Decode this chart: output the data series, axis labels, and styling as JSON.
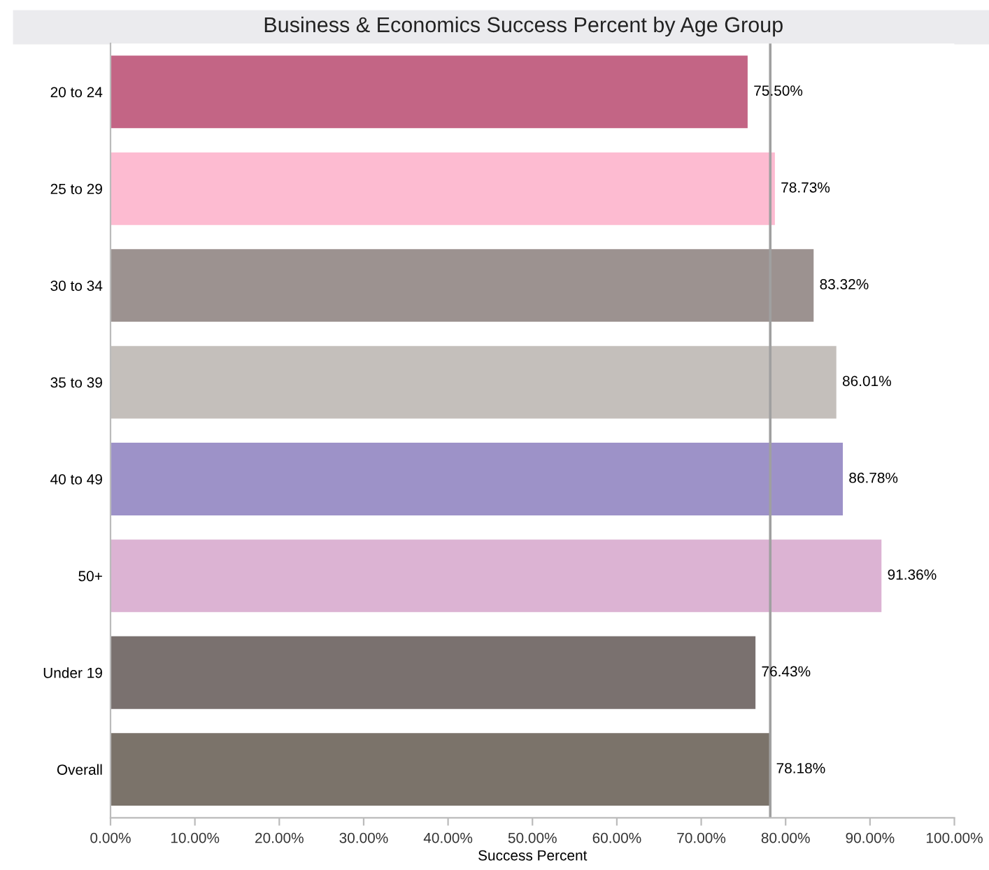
{
  "chart_data": {
    "type": "bar",
    "orientation": "horizontal",
    "title": "Business & Economics Success Percent by Age Group",
    "xlabel": "Success Percent",
    "categories": [
      "20 to 24",
      "25 to 29",
      "30 to 34",
      "35 to 39",
      "40 to 49",
      "50+",
      "Under 19",
      "Overall"
    ],
    "values": [
      75.5,
      78.73,
      83.32,
      86.01,
      86.78,
      91.36,
      76.43,
      78.18
    ],
    "colors": [
      "#c36585",
      "#fdbbd1",
      "#9c9290",
      "#c4bfbb",
      "#9d92c8",
      "#dcb3d3",
      "#7a716f",
      "#7b736a"
    ],
    "value_labels": [
      "75.50%",
      "78.73%",
      "83.32%",
      "86.01%",
      "86.78%",
      "91.36%",
      "76.43%",
      "78.18%"
    ],
    "xlim": [
      0,
      100
    ],
    "xticks": [
      {
        "value": 0,
        "label": "0.00%"
      },
      {
        "value": 10,
        "label": "10.00%"
      },
      {
        "value": 20,
        "label": "20.00%"
      },
      {
        "value": 30,
        "label": "30.00%"
      },
      {
        "value": 40,
        "label": "40.00%"
      },
      {
        "value": 50,
        "label": "50.00%"
      },
      {
        "value": 60,
        "label": "60.00%"
      },
      {
        "value": 70,
        "label": "70.00%"
      },
      {
        "value": 80,
        "label": "80.00%"
      },
      {
        "value": 90,
        "label": "90.00%"
      },
      {
        "value": 100,
        "label": "100.00%"
      }
    ],
    "ref_lines": [
      {
        "axis": "x",
        "value": 78.18,
        "color": "#a0a0a0"
      }
    ],
    "grid": false
  }
}
